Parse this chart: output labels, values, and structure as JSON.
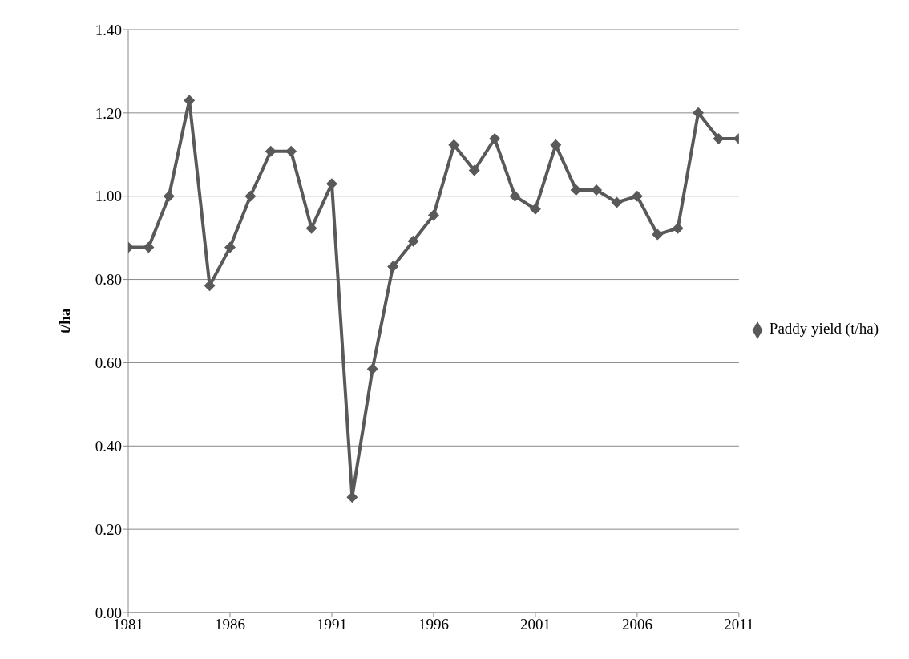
{
  "chart_data": {
    "type": "line",
    "ylabel": "t/ha",
    "x": [
      1981,
      1982,
      1983,
      1984,
      1985,
      1986,
      1987,
      1988,
      1989,
      1990,
      1991,
      1992,
      1993,
      1994,
      1995,
      1996,
      1997,
      1998,
      1999,
      2000,
      2001,
      2002,
      2003,
      2004,
      2005,
      2006,
      2007,
      2008,
      2009,
      2010,
      2011
    ],
    "series": [
      {
        "name": "Paddy yield (t/ha)",
        "color": "#595959",
        "values": [
          0.877,
          0.877,
          1.0,
          1.23,
          0.785,
          0.877,
          1.0,
          1.108,
          1.108,
          0.923,
          1.03,
          0.277,
          0.585,
          0.831,
          0.892,
          0.954,
          1.123,
          1.062,
          1.138,
          1.0,
          0.969,
          1.123,
          1.015,
          1.015,
          0.985,
          1.0,
          0.908,
          0.923,
          1.2,
          1.138,
          1.138
        ]
      }
    ],
    "xlim": [
      1981,
      2011
    ],
    "xticks": [
      1981,
      1986,
      1991,
      1996,
      2001,
      2006,
      2011
    ],
    "ylim": [
      0,
      1.4
    ],
    "yticks": [
      {
        "value": 0,
        "label": "0.00"
      },
      {
        "value": 0.2,
        "label": "0.20"
      },
      {
        "value": 0.4,
        "label": "0.40"
      },
      {
        "value": 0.6,
        "label": "0.60"
      },
      {
        "value": 0.8,
        "label": "0.80"
      },
      {
        "value": 1.0,
        "label": "1.00"
      },
      {
        "value": 1.2,
        "label": "1.20"
      },
      {
        "value": 1.4,
        "label": "1.40"
      }
    ],
    "grid": "y",
    "legend": "right",
    "marker": "diamond",
    "line_style": "solid"
  }
}
